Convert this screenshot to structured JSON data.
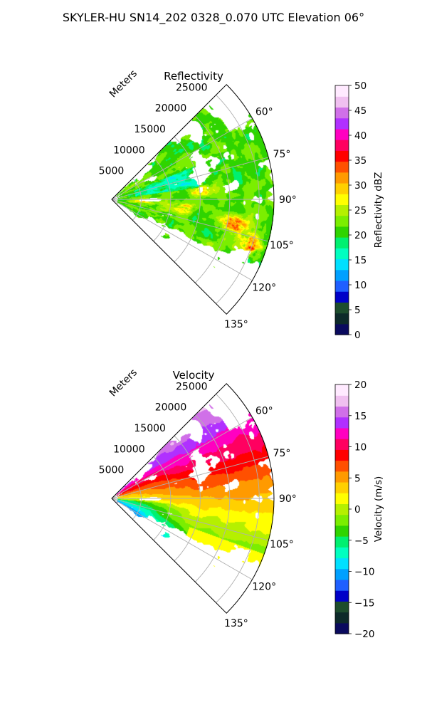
{
  "suptitle": "SKYLER-HU  SN14_202  0328_0.070 UTC Elevation 06°",
  "colors": {
    "refl_cmap": [
      "#0a0a5e",
      "#0d2a2a",
      "#1d4d2d",
      "#0000c8",
      "#1f5fff",
      "#00a0ff",
      "#00e0ff",
      "#00ffc0",
      "#00f070",
      "#2fd400",
      "#7bee00",
      "#b5f000",
      "#ffff00",
      "#ffd000",
      "#ff9a00",
      "#ff5000",
      "#ff0000",
      "#ff0060",
      "#ff00c0",
      "#b030ff",
      "#d070e8",
      "#f0c0f0",
      "#ffeaff"
    ],
    "vel_cmap": [
      "#0a0a5e",
      "#0d2a2a",
      "#1d4d2d",
      "#0000c8",
      "#1f5fff",
      "#00a0ff",
      "#00e0ff",
      "#00ffc0",
      "#00f070",
      "#2fd400",
      "#7bee00",
      "#b5f000",
      "#ffff00",
      "#ffd000",
      "#ff9a00",
      "#ff5000",
      "#ff0000",
      "#ff0060",
      "#ff00c0",
      "#b030ff",
      "#d070e8",
      "#f0c0f0",
      "#ffeaff"
    ]
  },
  "chart_data": [
    {
      "type": "heatmap",
      "subtype": "polar-ppi-sector",
      "title": "Reflectivity",
      "radial_axis_label": "Meters",
      "radial_ticks": [
        5000,
        10000,
        15000,
        20000,
        25000
      ],
      "radial_tick_labels": [
        "5000",
        "10000",
        "15000",
        "20000",
        "25000"
      ],
      "radial_range": [
        0,
        27500
      ],
      "azimuth_range_deg": [
        45,
        135
      ],
      "azimuth_ticks_deg": [
        60,
        75,
        90,
        105,
        120,
        135
      ],
      "azimuth_tick_labels": [
        "60°",
        "75°",
        "90°",
        "105°",
        "120°",
        "135°"
      ],
      "grid": true,
      "colorbar": {
        "label": "Reflectivity dBZ",
        "range": [
          0,
          50
        ],
        "ticks": [
          0,
          5,
          10,
          15,
          20,
          25,
          30,
          35,
          40,
          45,
          50
        ],
        "tick_labels": [
          "0",
          "5",
          "10",
          "15",
          "20",
          "25",
          "30",
          "35",
          "40",
          "45",
          "50"
        ]
      },
      "field": {
        "description_values": "typical echo 18–28 dBZ, cores up to ~38 dBZ near 100–110° at 18–25 km",
        "core_cells": [
          {
            "az": 101,
            "r": 21000,
            "value": 36
          },
          {
            "az": 108,
            "r": 24500,
            "value": 38
          },
          {
            "az": 96,
            "r": 12000,
            "value": 32
          },
          {
            "az": 84,
            "r": 15000,
            "value": 30
          },
          {
            "az": 94,
            "r": 5000,
            "value": 31
          }
        ]
      }
    },
    {
      "type": "heatmap",
      "subtype": "polar-ppi-sector",
      "title": "Velocity",
      "radial_axis_label": "Meters",
      "radial_ticks": [
        5000,
        10000,
        15000,
        20000,
        25000
      ],
      "radial_tick_labels": [
        "5000",
        "10000",
        "15000",
        "20000",
        "25000"
      ],
      "radial_range": [
        0,
        27500
      ],
      "azimuth_range_deg": [
        45,
        135
      ],
      "azimuth_ticks_deg": [
        60,
        75,
        90,
        105,
        120,
        135
      ],
      "azimuth_tick_labels": [
        "60°",
        "75°",
        "90°",
        "105°",
        "120°",
        "135°"
      ],
      "grid": true,
      "colorbar": {
        "label": "Velocity (m/s)",
        "range": [
          -20,
          20
        ],
        "ticks": [
          -20,
          -15,
          -10,
          -5,
          0,
          5,
          10,
          15,
          20
        ],
        "tick_labels": [
          "−20",
          "−15",
          "−10",
          "−5",
          "0",
          "5",
          "10",
          "15",
          "20"
        ]
      },
      "field": {
        "description_values": "~+14 m/s at 55–70° far range, ~+8 near 80–95°, ~0 near 100–120°, ~-8 to -10 near 110–125° close range"
      }
    }
  ]
}
